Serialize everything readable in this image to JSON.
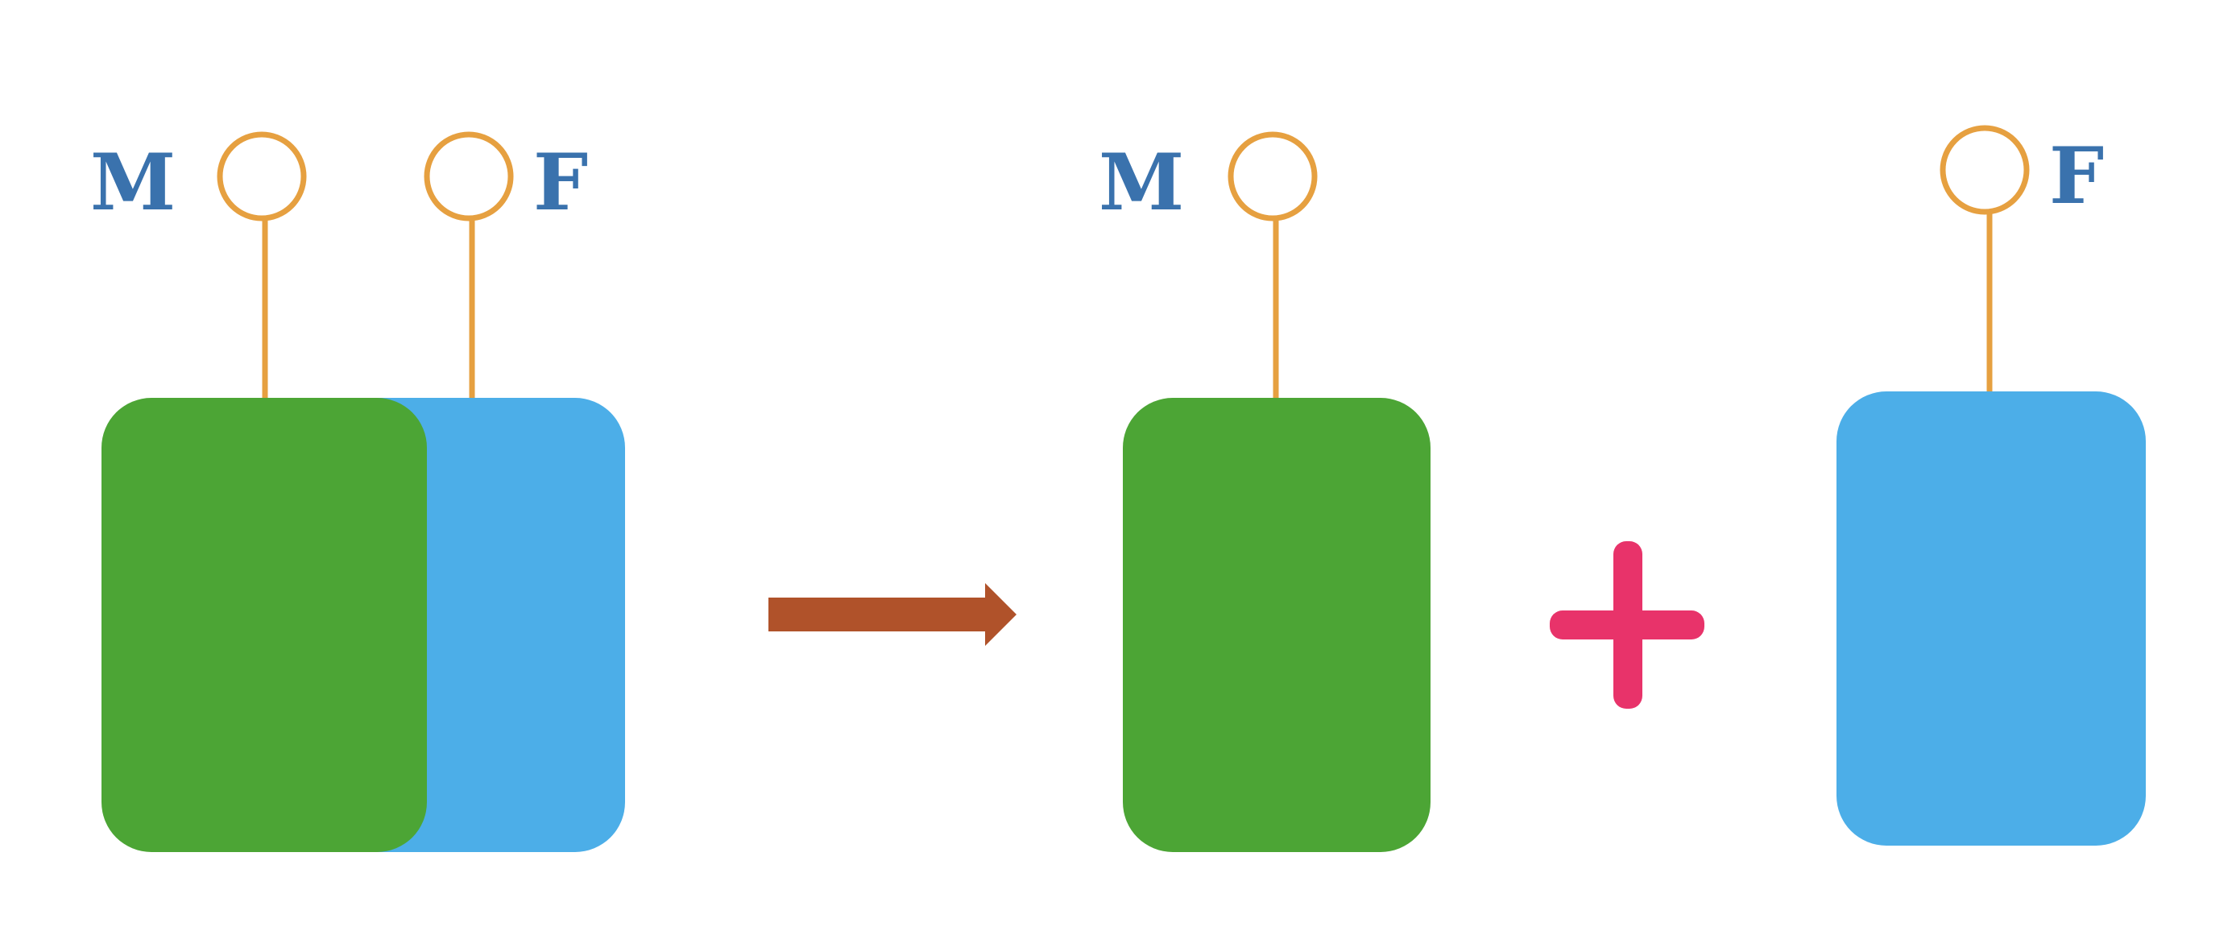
{
  "labels": {
    "left_m": "M",
    "left_f": "F",
    "mid_m": "M",
    "right_f": "F",
    "plus": "+"
  },
  "colors": {
    "green": "#4ca535",
    "blue": "#4caee8",
    "orange": "#e6a040",
    "label_blue": "#3a72ad",
    "arrow": "#b0522a",
    "plus": "#e8336a",
    "background": "#ffffff"
  },
  "icons": {
    "arrow": "arrow-right-icon",
    "plus": "plus-icon",
    "handle": "lollipop-handle-icon"
  }
}
